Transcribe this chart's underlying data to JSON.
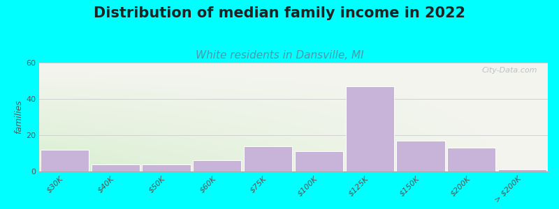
{
  "title": "Distribution of median family income in 2022",
  "subtitle": "White residents in Dansville, MI",
  "ylabel": "families",
  "categories": [
    "$30K",
    "$40K",
    "$50K",
    "$60K",
    "$75K",
    "$100K",
    "$125K",
    "$150K",
    "$200K",
    "> $200K"
  ],
  "values": [
    12,
    4,
    4,
    6,
    14,
    11,
    47,
    17,
    13,
    1
  ],
  "bar_color": "#c8b4d8",
  "bar_edgecolor": "#ffffff",
  "ylim": [
    0,
    60
  ],
  "yticks": [
    0,
    20,
    40,
    60
  ],
  "background_color": "#00ffff",
  "plot_bg_color_top_left": "#e8f5e0",
  "plot_bg_color_top_right": "#f8f8f5",
  "plot_bg_color_bottom_right": "#f8f8f5",
  "title_fontsize": 15,
  "subtitle_fontsize": 11,
  "subtitle_color": "#4a9aaa",
  "ylabel_fontsize": 9,
  "watermark": "City-Data.com",
  "title_color": "#222222",
  "tick_color": "#555555",
  "grid_color": "#cccccc"
}
